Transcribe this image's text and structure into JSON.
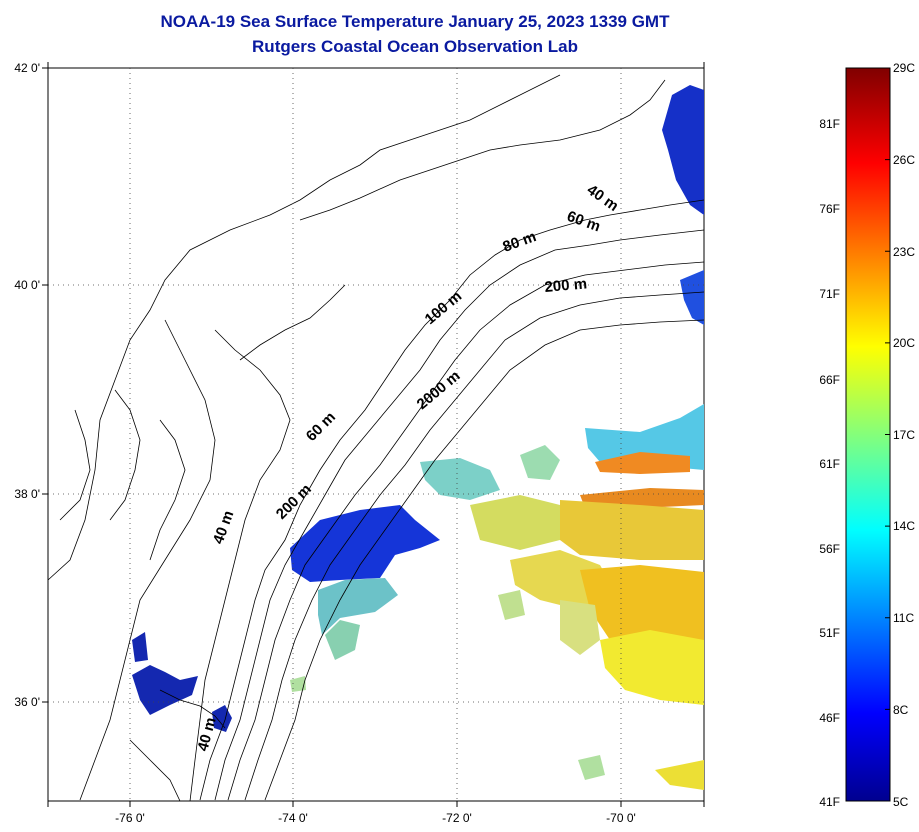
{
  "title": "NOAA-19 Sea Surface Temperature January 25, 2023 1339 GMT",
  "subtitle": "Rutgers Coastal Ocean Observation Lab",
  "lon_ticks": [
    "-76 0'",
    "-74 0'",
    "-72 0'",
    "-70 0'"
  ],
  "lat_ticks": [
    "42 0'",
    "40 0'",
    "38 0'",
    "36 0'"
  ],
  "isobaths": [
    "40 m",
    "60 m",
    "80 m",
    "200 m",
    "100 m",
    "2000 m",
    "60 m",
    "200 m",
    "40 m",
    "40 m"
  ],
  "colorbar": {
    "fahrenheit": [
      "81F",
      "76F",
      "71F",
      "66F",
      "61F",
      "56F",
      "51F",
      "46F",
      "41F"
    ],
    "celsius": [
      "29C",
      "26C",
      "23C",
      "20C",
      "17C",
      "14C",
      "11C",
      "8C",
      "5C"
    ],
    "range_c": [
      5,
      29
    ],
    "colormap": [
      "#00008f",
      "#0000ff",
      "#00ffff",
      "#ffff00",
      "#ff0000",
      "#800000"
    ]
  },
  "map": {
    "lon_range": [
      -77.0,
      -69.0
    ],
    "lat_range": [
      35.0,
      42.0
    ],
    "land_color": "#ffffff",
    "coast_color": "#000000"
  }
}
